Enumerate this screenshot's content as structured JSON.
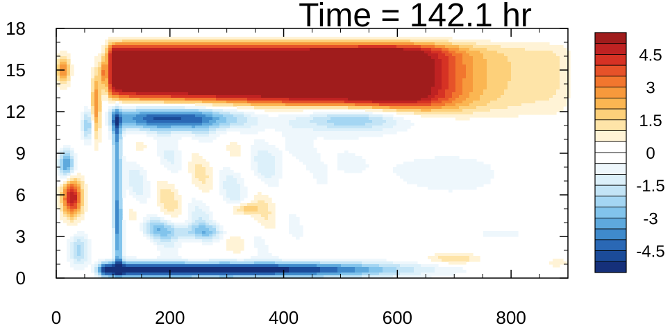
{
  "chart_data": {
    "type": "heatmap",
    "title": "Time = 142.1 hr",
    "xlabel": "",
    "ylabel": "",
    "xlim": [
      0,
      900
    ],
    "ylim": [
      0,
      18
    ],
    "x_ticks": [
      "0",
      "200",
      "400",
      "600",
      "800"
    ],
    "y_ticks": [
      "0",
      "3",
      "6",
      "9",
      "12",
      "15",
      "18"
    ],
    "colorbar": {
      "range": [
        -5.5,
        5.5
      ],
      "step": 0.5,
      "tick_labels": [
        "4.5",
        "3",
        "1.5",
        "0",
        "-1.5",
        "-3",
        "-4.5"
      ],
      "colors": [
        "#a01c1c",
        "#bf2222",
        "#d63224",
        "#e65229",
        "#f2762e",
        "#f7993c",
        "#fbb652",
        "#fdd07a",
        "#fee4a8",
        "#fff3d6",
        "#ffffff",
        "#ffffff",
        "#eef7fc",
        "#dcf0fa",
        "#c3e4f6",
        "#a4d6f3",
        "#82c4ec",
        "#5ea9dd",
        "#3f8acb",
        "#2a68b5",
        "#1b4b99",
        "#15307a"
      ]
    },
    "features": [
      {
        "name": "upper positive layer",
        "x_range": [
          100,
          660
        ],
        "y_range": [
          13.0,
          16.8
        ],
        "value": 5.5
      },
      {
        "name": "upper positive tail",
        "x_range": [
          560,
          900
        ],
        "y_range": [
          12.0,
          16.8
        ],
        "value": 1.0
      },
      {
        "name": "mid-level negative band",
        "x_range": [
          100,
          560
        ],
        "y_range": [
          10.5,
          12.5
        ],
        "value": -4.5
      },
      {
        "name": "near-surface negative band",
        "x_range": [
          70,
          600
        ],
        "y_range": [
          0.2,
          1.2
        ],
        "value": -5.5
      },
      {
        "name": "low-level positive patch",
        "x_range": [
          0,
          60
        ],
        "y_range": [
          4.0,
          7.5
        ],
        "value": 4.5
      },
      {
        "name": "positive patch near x=320",
        "x_range": [
          300,
          360
        ],
        "y_range": [
          4.5,
          5.5
        ],
        "value": 2.0
      },
      {
        "name": "positive patch near x=700",
        "x_range": [
          660,
          760
        ],
        "y_range": [
          1.0,
          1.8
        ],
        "value": 1.5
      }
    ]
  }
}
